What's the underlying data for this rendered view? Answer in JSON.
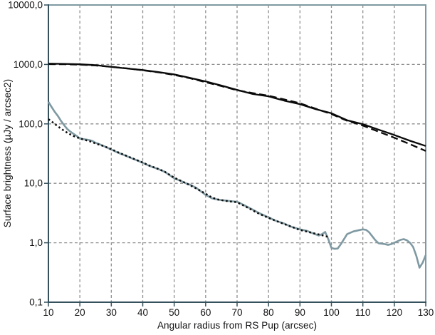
{
  "chart_data": {
    "type": "line",
    "title": "",
    "xlabel": "Angular radius from RS Pup (arcsec)",
    "ylabel": "Surface brightness (µJy / arcsec2)",
    "xlim": [
      10,
      130
    ],
    "ylim": [
      0.1,
      10000
    ],
    "yscale": "log",
    "grid": true,
    "legend": "none",
    "colors": {
      "axis_dark": "#35515d",
      "axis_light": "#7e99a2",
      "gridline": "#8f8f8f",
      "black_series": "#0a0a0a",
      "gray_series": "#7f99a2",
      "text": "#111111"
    },
    "xticks": [
      {
        "v": 10,
        "label": "10"
      },
      {
        "v": 20,
        "label": "20"
      },
      {
        "v": 30,
        "label": "30"
      },
      {
        "v": 40,
        "label": "40"
      },
      {
        "v": 50,
        "label": "50"
      },
      {
        "v": 60,
        "label": "60"
      },
      {
        "v": 70,
        "label": "70"
      },
      {
        "v": 80,
        "label": "80"
      },
      {
        "v": 90,
        "label": "90"
      },
      {
        "v": 100,
        "label": "100"
      },
      {
        "v": 110,
        "label": "110"
      },
      {
        "v": 120,
        "label": "120"
      },
      {
        "v": 130,
        "label": "130"
      }
    ],
    "yticks": [
      {
        "v": 10000,
        "label": "10000,0"
      },
      {
        "v": 1000,
        "label": "1000,0"
      },
      {
        "v": 100,
        "label": "100,0"
      },
      {
        "v": 10,
        "label": "10,0"
      },
      {
        "v": 1,
        "label": "1,0"
      },
      {
        "v": 0.1,
        "label": "0,1"
      }
    ],
    "series": [
      {
        "name": "upper-profile-solid-black",
        "color": "#0a0a0a",
        "style": "solid",
        "width": 2.3,
        "points": [
          [
            10,
            1030
          ],
          [
            15,
            1022
          ],
          [
            20,
            1005
          ],
          [
            25,
            972
          ],
          [
            30,
            910
          ],
          [
            35,
            855
          ],
          [
            40,
            805
          ],
          [
            45,
            742
          ],
          [
            50,
            680
          ],
          [
            55,
            595
          ],
          [
            60,
            518
          ],
          [
            65,
            442
          ],
          [
            70,
            373
          ],
          [
            75,
            318
          ],
          [
            80,
            291
          ],
          [
            82,
            272
          ],
          [
            85,
            246
          ],
          [
            90,
            215
          ],
          [
            95,
            177
          ],
          [
            100,
            151
          ],
          [
            105,
            115
          ],
          [
            110,
            99
          ],
          [
            115,
            80
          ],
          [
            120,
            65
          ],
          [
            125,
            52
          ],
          [
            130,
            42.5
          ]
        ]
      },
      {
        "name": "upper-model-dashed-black",
        "color": "#0a0a0a",
        "style": "dashed",
        "width": 2.3,
        "points": [
          [
            10,
            1012
          ],
          [
            15,
            1008
          ],
          [
            20,
            992
          ],
          [
            25,
            960
          ],
          [
            30,
            912
          ],
          [
            35,
            858
          ],
          [
            40,
            797
          ],
          [
            45,
            736
          ],
          [
            50,
            667
          ],
          [
            55,
            586
          ],
          [
            60,
            503
          ],
          [
            65,
            432
          ],
          [
            70,
            368
          ],
          [
            75,
            330
          ],
          [
            80,
            298
          ],
          [
            85,
            258
          ],
          [
            90,
            222
          ],
          [
            95,
            180
          ],
          [
            100,
            146
          ],
          [
            105,
            113
          ],
          [
            110,
            93.5
          ],
          [
            115,
            74
          ],
          [
            120,
            58.5
          ],
          [
            125,
            45.5
          ],
          [
            130,
            35
          ]
        ]
      },
      {
        "name": "lower-profile-solid-gray",
        "color": "#7f99a2",
        "style": "solid",
        "width": 2.6,
        "points": [
          [
            10,
            234
          ],
          [
            11,
            193
          ],
          [
            12,
            160
          ],
          [
            13,
            136
          ],
          [
            14,
            112
          ],
          [
            15,
            95
          ],
          [
            16,
            82
          ],
          [
            17,
            74
          ],
          [
            18,
            68
          ],
          [
            19,
            62.5
          ],
          [
            20,
            57
          ],
          [
            21,
            55.5
          ],
          [
            22,
            54.5
          ],
          [
            23,
            53.5
          ],
          [
            24,
            51.5
          ],
          [
            25,
            48
          ],
          [
            26,
            46
          ],
          [
            28,
            41.5
          ],
          [
            30,
            37
          ],
          [
            32,
            33
          ],
          [
            34,
            30
          ],
          [
            35,
            28.5
          ],
          [
            37,
            25.8
          ],
          [
            40,
            22.2
          ],
          [
            42,
            19.8
          ],
          [
            45,
            17.3
          ],
          [
            47,
            15.6
          ],
          [
            50,
            12.2
          ],
          [
            52,
            11
          ],
          [
            54,
            9.9
          ],
          [
            55,
            9.5
          ],
          [
            57,
            8.4
          ],
          [
            60,
            6.4
          ],
          [
            62,
            5.6
          ],
          [
            64,
            5.3
          ],
          [
            66,
            5.15
          ],
          [
            68,
            5.0
          ],
          [
            70,
            4.9
          ],
          [
            72,
            4.35
          ],
          [
            75,
            3.6
          ],
          [
            77,
            3.15
          ],
          [
            80,
            2.68
          ],
          [
            82,
            2.38
          ],
          [
            85,
            2.1
          ],
          [
            87,
            1.88
          ],
          [
            90,
            1.68
          ],
          [
            92,
            1.6
          ],
          [
            94,
            1.45
          ],
          [
            96,
            1.32
          ],
          [
            97,
            1.4
          ],
          [
            98,
            1.52
          ],
          [
            99,
            1.15
          ],
          [
            100,
            0.82
          ],
          [
            101,
            0.79
          ],
          [
            102,
            0.8
          ],
          [
            103,
            0.95
          ],
          [
            105,
            1.4
          ],
          [
            107,
            1.55
          ],
          [
            109,
            1.64
          ],
          [
            110,
            1.68
          ],
          [
            111,
            1.65
          ],
          [
            112,
            1.5
          ],
          [
            114,
            1.1
          ],
          [
            115,
            0.98
          ],
          [
            117,
            0.95
          ],
          [
            118,
            0.92
          ],
          [
            119,
            0.95
          ],
          [
            120,
            1.0
          ],
          [
            122,
            1.12
          ],
          [
            123,
            1.15
          ],
          [
            124,
            1.1
          ],
          [
            125,
            1.0
          ],
          [
            126,
            0.85
          ],
          [
            127,
            0.6
          ],
          [
            128,
            0.38
          ],
          [
            129,
            0.46
          ],
          [
            130,
            0.62
          ]
        ]
      },
      {
        "name": "lower-fit-dotted-black",
        "color": "#0a0a0a",
        "style": "dotted",
        "width": 2.5,
        "points": [
          [
            10,
            120
          ],
          [
            11,
            110
          ],
          [
            12,
            100
          ],
          [
            13,
            91
          ],
          [
            14,
            83
          ],
          [
            15,
            76.5
          ],
          [
            16,
            71
          ],
          [
            17,
            66.5
          ],
          [
            18,
            62.5
          ],
          [
            19,
            59.5
          ],
          [
            20,
            57
          ],
          [
            22,
            53
          ],
          [
            24,
            49.5
          ],
          [
            25,
            46.5
          ],
          [
            26,
            45
          ],
          [
            28,
            41.5
          ],
          [
            30,
            37.5
          ],
          [
            32,
            33.5
          ],
          [
            35,
            28.8
          ],
          [
            37,
            26
          ],
          [
            40,
            22.4
          ],
          [
            42,
            20
          ],
          [
            45,
            17.4
          ],
          [
            47,
            15.7
          ],
          [
            50,
            12.4
          ],
          [
            52,
            11.1
          ],
          [
            55,
            9.3
          ],
          [
            57,
            8.2
          ],
          [
            60,
            6.7
          ],
          [
            62,
            5.75
          ],
          [
            64,
            5.35
          ],
          [
            66,
            5.1
          ],
          [
            68,
            4.95
          ],
          [
            70,
            4.8
          ],
          [
            72,
            4.25
          ],
          [
            75,
            3.5
          ],
          [
            77,
            3.08
          ],
          [
            80,
            2.62
          ],
          [
            82,
            2.38
          ],
          [
            85,
            2.06
          ],
          [
            87,
            1.88
          ],
          [
            90,
            1.64
          ],
          [
            92,
            1.55
          ],
          [
            94,
            1.46
          ],
          [
            96,
            1.38
          ],
          [
            98,
            1.3
          ],
          [
            99,
            1.25
          ]
        ]
      }
    ]
  }
}
